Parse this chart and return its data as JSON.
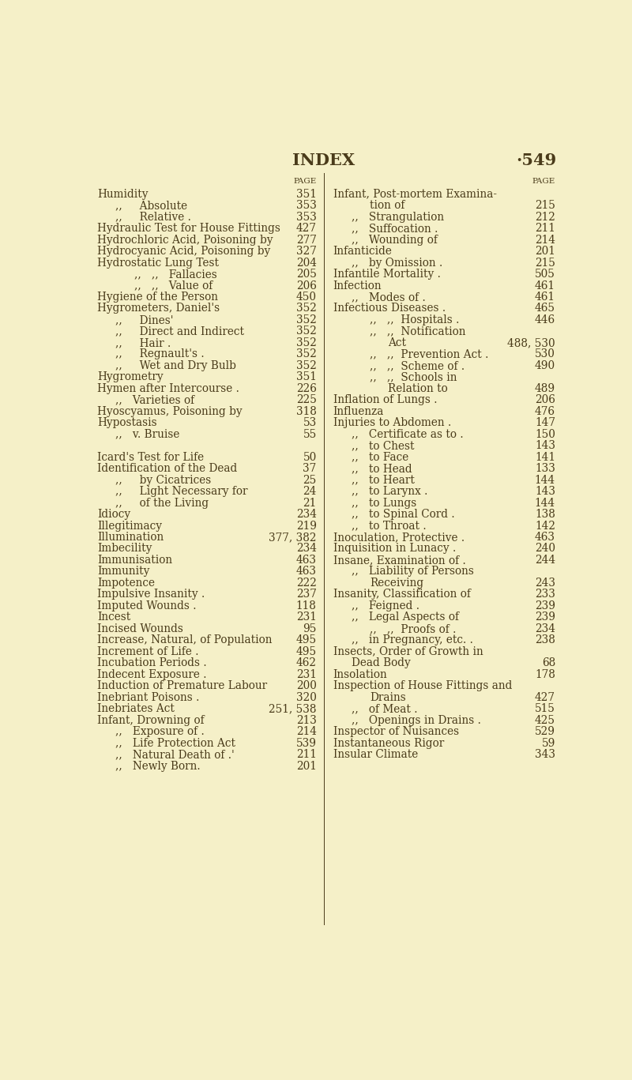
{
  "bg_color": "#F5F0C8",
  "text_color": "#4A3B1A",
  "title": "INDEX",
  "page_num": "·549",
  "figsize": [
    8.0,
    13.67
  ],
  "dpi": 100,
  "left_col": [
    {
      "text": "Humidity",
      "dots": true,
      "page": "351",
      "indent": 0
    },
    {
      "text": ",,     Absolute",
      "dots": true,
      "page": "353",
      "indent": 1
    },
    {
      "text": ",,     Relative .",
      "dots": true,
      "page": "353",
      "indent": 1
    },
    {
      "text": "Hydraulic Test for House Fittings",
      "dots": false,
      "page": "427",
      "indent": 0
    },
    {
      "text": "Hydrochloric Acid, Poisoning by",
      "dots": false,
      "page": "277",
      "indent": 0
    },
    {
      "text": "Hydrocyanic Acid, Poisoning by",
      "dots": false,
      "page": "327",
      "indent": 0
    },
    {
      "text": "Hydrostatic Lung Test",
      "dots": true,
      "page": "204",
      "indent": 0
    },
    {
      "text": ",,   ,,   Fallacies",
      "dots": true,
      "page": "205",
      "indent": 2
    },
    {
      "text": ",,   ,,   Value of",
      "dots": true,
      "page": "206",
      "indent": 2
    },
    {
      "text": "Hygiene of the Person",
      "dots": true,
      "page": "450",
      "indent": 0
    },
    {
      "text": "Hygrometers, Daniel's",
      "dots": true,
      "page": "352",
      "indent": 0
    },
    {
      "text": ",,     Dines'",
      "dots": true,
      "page": "352",
      "indent": 1
    },
    {
      "text": ",,     Direct and Indirect",
      "dots": false,
      "page": "352",
      "indent": 1
    },
    {
      "text": ",,     Hair .",
      "dots": true,
      "page": "352",
      "indent": 1
    },
    {
      "text": ",,     Regnault's .",
      "dots": true,
      "page": "352",
      "indent": 1
    },
    {
      "text": ",,     Wet and Dry Bulb",
      "dots": false,
      "page": "352",
      "indent": 1
    },
    {
      "text": "Hygrometry",
      "dots": true,
      "page": "351",
      "indent": 0
    },
    {
      "text": "Hymen after Intercourse .",
      "dots": true,
      "page": "226",
      "indent": 0
    },
    {
      "text": ",,   Varieties of",
      "dots": true,
      "page": "225",
      "indent": 1
    },
    {
      "text": "Hyoscyamus, Poisoning by",
      "dots": true,
      "page": "318",
      "indent": 0
    },
    {
      "text": "Hypostasis",
      "dots": true,
      "page": "53",
      "indent": 0
    },
    {
      "text": ",,   v. Bruise",
      "dots": true,
      "page": "55",
      "indent": 1
    },
    {
      "text": "",
      "dots": false,
      "page": "",
      "indent": 0
    },
    {
      "text": "Icard's Test for Life",
      "dots": true,
      "page": "50",
      "indent": 0
    },
    {
      "text": "Identification of the Dead",
      "dots": true,
      "page": "37",
      "indent": 0
    },
    {
      "text": ",,     by Cicatrices",
      "dots": true,
      "page": "25",
      "indent": 1
    },
    {
      "text": ",,     Light Necessary for",
      "dots": false,
      "page": "24",
      "indent": 1
    },
    {
      "text": ",,     of the Living",
      "dots": true,
      "page": "21",
      "indent": 1
    },
    {
      "text": "Idiocy",
      "dots": true,
      "page": "234",
      "indent": 0
    },
    {
      "text": "Illegitimacy",
      "dots": true,
      "page": "219",
      "indent": 0
    },
    {
      "text": "Illumination",
      "dots": true,
      "page": "377, 382",
      "indent": 0
    },
    {
      "text": "Imbecility",
      "dots": true,
      "page": "234",
      "indent": 0
    },
    {
      "text": "Immunisation",
      "dots": true,
      "page": "463",
      "indent": 0
    },
    {
      "text": "Immunity",
      "dots": true,
      "page": "463",
      "indent": 0
    },
    {
      "text": "Impotence",
      "dots": true,
      "page": "222",
      "indent": 0
    },
    {
      "text": "Impulsive Insanity .",
      "dots": true,
      "page": "237",
      "indent": 0
    },
    {
      "text": "Imputed Wounds .",
      "dots": true,
      "page": "118",
      "indent": 0
    },
    {
      "text": "Incest",
      "dots": true,
      "page": "231",
      "indent": 0
    },
    {
      "text": "Incised Wounds",
      "dots": true,
      "page": "95",
      "indent": 0
    },
    {
      "text": "Increase, Natural, of Population",
      "dots": false,
      "page": "495",
      "indent": 0
    },
    {
      "text": "Increment of Life .",
      "dots": true,
      "page": "495",
      "indent": 0
    },
    {
      "text": "Incubation Periods .",
      "dots": true,
      "page": "462",
      "indent": 0
    },
    {
      "text": "Indecent Exposure .",
      "dots": true,
      "page": "231",
      "indent": 0
    },
    {
      "text": "Induction of Premature Labour",
      "dots": false,
      "page": "200",
      "indent": 0
    },
    {
      "text": "Inebriant Poisons .",
      "dots": true,
      "page": "320",
      "indent": 0
    },
    {
      "text": "Inebriates Act",
      "dots": true,
      "page": "251, 538",
      "indent": 0
    },
    {
      "text": "Infant, Drowning of",
      "dots": true,
      "page": "213",
      "indent": 0
    },
    {
      "text": ",,   Exposure of .",
      "dots": true,
      "page": "214",
      "indent": 1
    },
    {
      "text": ",,   Life Protection Act",
      "dots": true,
      "page": "539",
      "indent": 1
    },
    {
      "text": ",,   Natural Death of .'",
      "dots": true,
      "page": "211",
      "indent": 1
    },
    {
      "text": ",,   Newly Born.",
      "dots": true,
      "page": "201",
      "indent": 1
    }
  ],
  "right_col": [
    {
      "text": "Infant, Post-mortem Examina-",
      "dots": false,
      "page": "",
      "indent": 0
    },
    {
      "text": "tion of",
      "dots": true,
      "page": "215",
      "indent": 2
    },
    {
      "text": ",,   Strangulation",
      "dots": true,
      "page": "212",
      "indent": 1
    },
    {
      "text": ",,   Suffocation .",
      "dots": true,
      "page": "211",
      "indent": 1
    },
    {
      "text": ",,   Wounding of",
      "dots": true,
      "page": "214",
      "indent": 1
    },
    {
      "text": "Infanticide",
      "dots": true,
      "page": "201",
      "indent": 0
    },
    {
      "text": ",,   by Omission .",
      "dots": true,
      "page": "215",
      "indent": 1
    },
    {
      "text": "Infantile Mortality .",
      "dots": true,
      "page": "505",
      "indent": 0
    },
    {
      "text": "Infection",
      "dots": true,
      "page": "461",
      "indent": 0
    },
    {
      "text": ",,   Modes of .",
      "dots": true,
      "page": "461",
      "indent": 1
    },
    {
      "text": "Infectious Diseases .",
      "dots": true,
      "page": "465",
      "indent": 0
    },
    {
      "text": ",,   ,,  Hospitals .",
      "dots": false,
      "page": "446",
      "indent": 2
    },
    {
      "text": ",,   ,,  Notification",
      "dots": false,
      "page": "",
      "indent": 2
    },
    {
      "text": "Act",
      "dots": false,
      "page": "488, 530",
      "indent": 3
    },
    {
      "text": ",,   ,,  Prevention Act .",
      "dots": false,
      "page": "530",
      "indent": 2
    },
    {
      "text": ",,   ,,  Scheme of .",
      "dots": false,
      "page": "490",
      "indent": 2
    },
    {
      "text": ",,   ,,  Schools in",
      "dots": false,
      "page": "",
      "indent": 2
    },
    {
      "text": "Relation to",
      "dots": false,
      "page": "489",
      "indent": 3
    },
    {
      "text": "Inflation of Lungs .",
      "dots": true,
      "page": "206",
      "indent": 0
    },
    {
      "text": "Influenza",
      "dots": true,
      "page": "476",
      "indent": 0
    },
    {
      "text": "Injuries to Abdomen .",
      "dots": true,
      "page": "147",
      "indent": 0
    },
    {
      "text": ",,   Certificate as to .",
      "dots": true,
      "page": "150",
      "indent": 1
    },
    {
      "text": ",,   to Chest",
      "dots": true,
      "page": "143",
      "indent": 1
    },
    {
      "text": ",,   to Face",
      "dots": true,
      "page": "141",
      "indent": 1
    },
    {
      "text": ",,   to Head",
      "dots": true,
      "page": "133",
      "indent": 1
    },
    {
      "text": ",,   to Heart",
      "dots": true,
      "page": "144",
      "indent": 1
    },
    {
      "text": ",,   to Larynx .",
      "dots": true,
      "page": "143",
      "indent": 1
    },
    {
      "text": ",,   to Lungs",
      "dots": true,
      "page": "144",
      "indent": 1
    },
    {
      "text": ",,   to Spinal Cord .",
      "dots": true,
      "page": "138",
      "indent": 1
    },
    {
      "text": ",,   to Throat .",
      "dots": true,
      "page": "142",
      "indent": 1
    },
    {
      "text": "Inoculation, Protective .",
      "dots": true,
      "page": "463",
      "indent": 0
    },
    {
      "text": "Inquisition in Lunacy .",
      "dots": true,
      "page": "240",
      "indent": 0
    },
    {
      "text": "Insane, Examination of .",
      "dots": true,
      "page": "244",
      "indent": 0
    },
    {
      "text": ",,   Liability of Persons",
      "dots": false,
      "page": "",
      "indent": 1
    },
    {
      "text": "Receiving",
      "dots": true,
      "page": "243",
      "indent": 2
    },
    {
      "text": "Insanity, Classification of",
      "dots": true,
      "page": "233",
      "indent": 0
    },
    {
      "text": ",,   Feigned .",
      "dots": true,
      "page": "239",
      "indent": 1
    },
    {
      "text": ",,   Legal Aspects of",
      "dots": true,
      "page": "239",
      "indent": 1
    },
    {
      "text": ",,   ,,  Proofs of .",
      "dots": false,
      "page": "234",
      "indent": 2
    },
    {
      "text": ",,   in Pregnancy, etc. .",
      "dots": false,
      "page": "238",
      "indent": 1
    },
    {
      "text": "Insects, Order of Growth in",
      "dots": false,
      "page": "",
      "indent": 0
    },
    {
      "text": "Dead Body",
      "dots": true,
      "page": "68",
      "indent": 1
    },
    {
      "text": "Insolation",
      "dots": true,
      "page": "178",
      "indent": 0
    },
    {
      "text": "Inspection of House Fittings and",
      "dots": false,
      "page": "",
      "indent": 0
    },
    {
      "text": "Drains",
      "dots": true,
      "page": "427",
      "indent": 2
    },
    {
      "text": ",,   of Meat .",
      "dots": true,
      "page": "515",
      "indent": 1
    },
    {
      "text": ",,   Openings in Drains .",
      "dots": false,
      "page": "425",
      "indent": 1
    },
    {
      "text": "Inspector of Nuisances",
      "dots": true,
      "page": "529",
      "indent": 0
    },
    {
      "text": "Instantaneous Rigor",
      "dots": true,
      "page": "59",
      "indent": 0
    },
    {
      "text": "Insular Climate",
      "dots": true,
      "page": "343",
      "indent": 0
    }
  ]
}
